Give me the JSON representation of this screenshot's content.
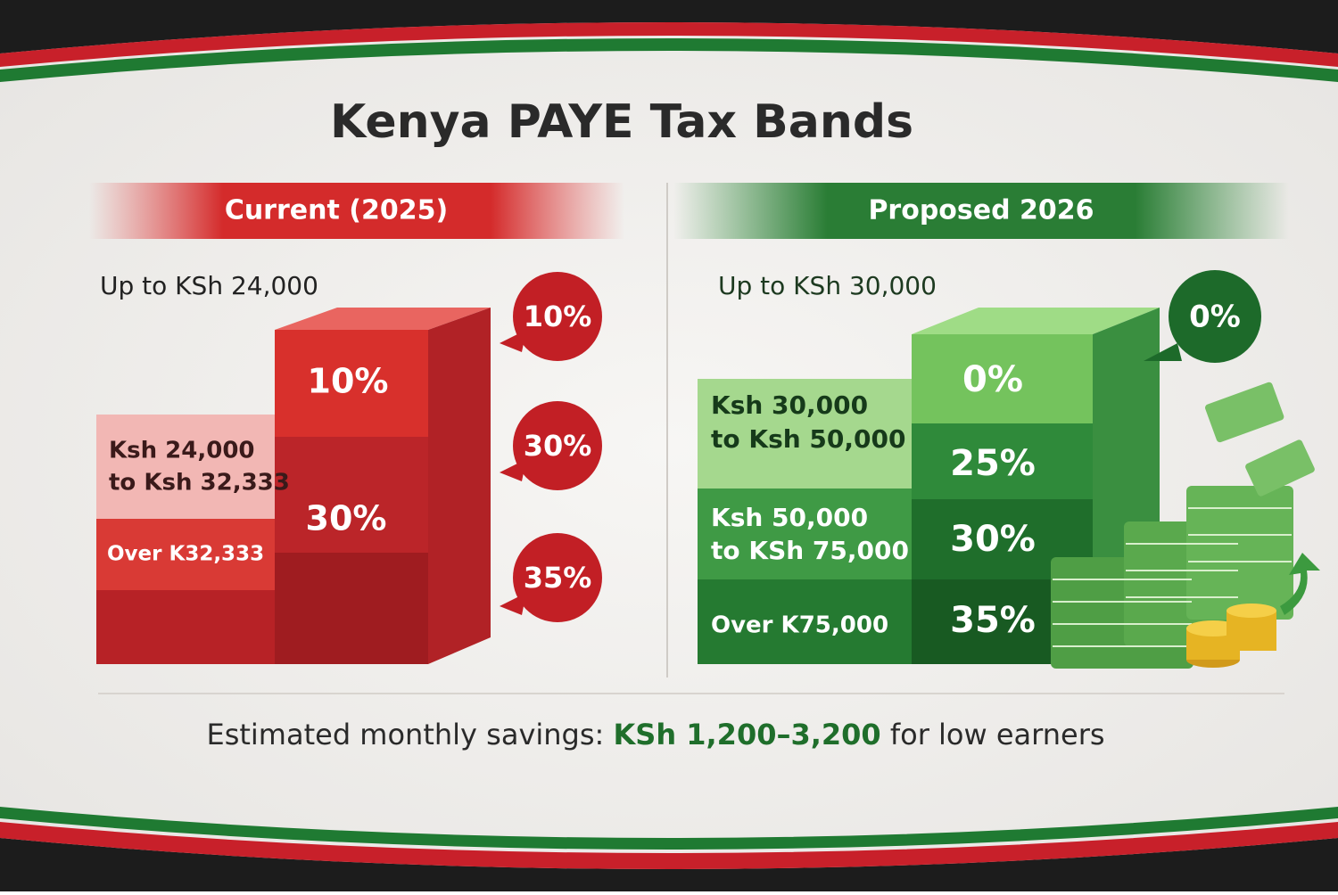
{
  "title": "Kenya PAYE Tax Bands",
  "current": {
    "header": "Current (2025)",
    "top_label": "Up to KSh 24,000",
    "side_labels": [
      [
        "Ksh 24,000",
        "to Ksh 32,333"
      ],
      [
        "Over K32,333"
      ]
    ],
    "bar_labels": [
      "10%",
      "30%"
    ],
    "callouts": [
      "10%",
      "30%",
      "35%"
    ]
  },
  "proposed": {
    "header": "Proposed 2026",
    "top_label": "Up to KSh 30,000",
    "side_labels": [
      [
        "Ksh 30,000",
        "to Ksh 50,000"
      ],
      [
        "Ksh 50,000",
        "to KSh 75,000"
      ],
      [
        "Over K75,000"
      ]
    ],
    "bar_labels": [
      "0%",
      "25%",
      "30%",
      "35%"
    ],
    "callouts": [
      "0%"
    ]
  },
  "footer": {
    "lead": "Estimated monthly savings:",
    "highlight": "KSh 1,200–3,200",
    "tail": "for low earners"
  }
}
